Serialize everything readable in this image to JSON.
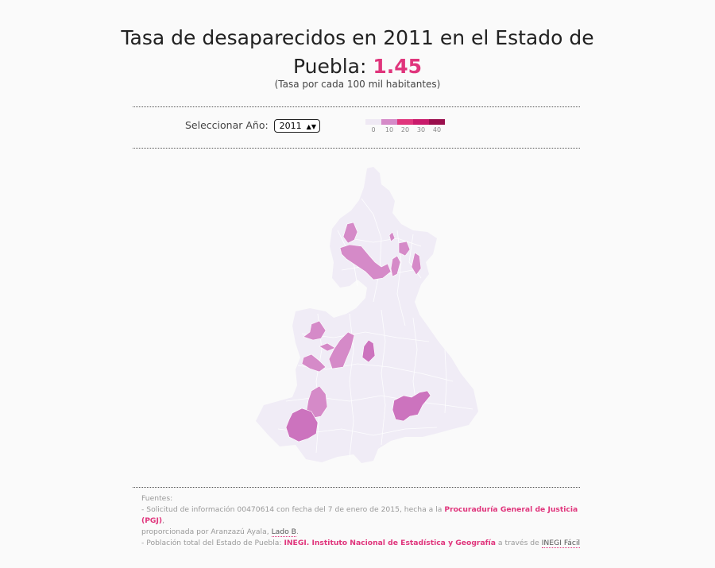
{
  "header": {
    "title_line1": "Tasa de desaparecidos en 2011 en el Estado de",
    "title_line2": "Puebla: ",
    "rate": "1.45",
    "subtitle": "(Tasa por cada 100 mil habitantes)"
  },
  "controls": {
    "year_label": "Seleccionar Año:",
    "year_value": "2011"
  },
  "legend": {
    "labels": [
      "0",
      "10",
      "20",
      "30",
      "40"
    ],
    "colors": [
      "#efe9f4",
      "#d58ac8",
      "#e0357c",
      "#c91a6b",
      "#9a0f4d"
    ]
  },
  "map": {
    "base_color": "#f0ecf6",
    "highlight_color": "#d58ac8",
    "darker_highlight": "#cc73be",
    "highlighted_municipalities": 13
  },
  "sources": {
    "heading": "Fuentes:",
    "l1_a": "- Solicitud de información 00470614 con fecha del 7 de enero de 2015, hecha a la ",
    "l1_link": "Procuraduría General de Justicia (PGJ)",
    "l1_b": ",",
    "l2_a": "proporcionada por Aranzazú Ayala, ",
    "l2_link": "Lado B",
    "l2_b": ".",
    "l3_a": "- Población total del Estado de Puebla: ",
    "l3_link": "INEGI. Instituto Nacional de Estadística y Geografía",
    "l3_b": " a través de ",
    "l3_link2": "INEGI Fácil"
  }
}
